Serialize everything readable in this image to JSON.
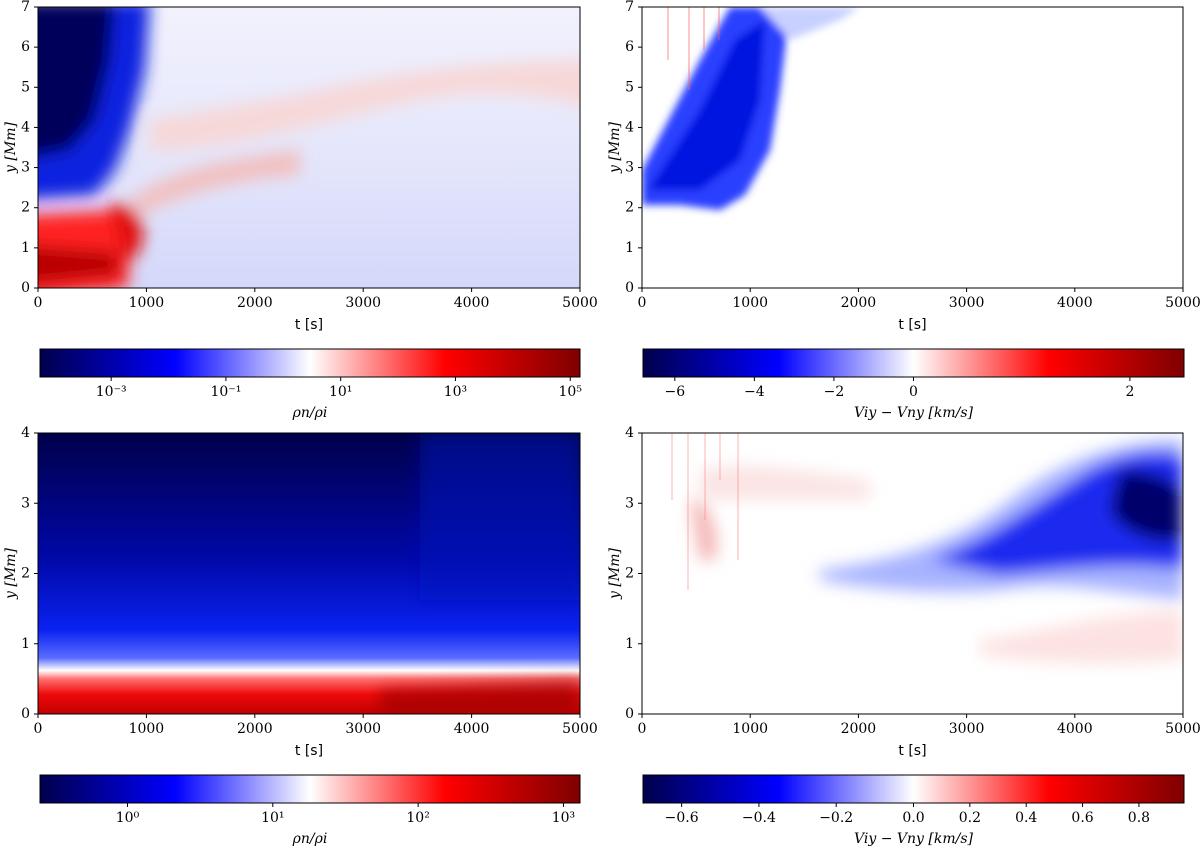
{
  "chart_data": [
    {
      "type": "heatmap",
      "xlabel": "t [s]",
      "ylabel": "y [Mm]",
      "xlim": [
        0,
        5000
      ],
      "ylim": [
        0,
        7
      ],
      "xticks": [
        0,
        1000,
        2000,
        3000,
        4000,
        5000
      ],
      "yticks": [
        0,
        1,
        2,
        3,
        4,
        5,
        6,
        7
      ],
      "colorbar": {
        "label": "ρn/ρi",
        "scale": "log",
        "lim": [
          5.75e-05,
          148000
        ],
        "ticks": [
          {
            "value": 0.001,
            "label": "10⁻³"
          },
          {
            "value": 0.1,
            "label": "10⁻¹"
          },
          {
            "value": 10,
            "label": "10¹"
          },
          {
            "value": 1000,
            "label": "10³"
          },
          {
            "value": 100000,
            "label": "10⁵"
          }
        ],
        "colors": [
          "#00004c",
          "#0000ff",
          "#ffffff",
          "#ff0000",
          "#7f0000"
        ]
      }
    },
    {
      "type": "heatmap",
      "xlabel": "t [s]",
      "ylabel": "y [Mm]",
      "xlim": [
        0,
        5000
      ],
      "ylim": [
        0,
        7
      ],
      "xticks": [
        0,
        1000,
        2000,
        3000,
        4000,
        5000
      ],
      "yticks": [
        0,
        1,
        2,
        3,
        4,
        5,
        6,
        7
      ],
      "colorbar": {
        "label": "Viy − Vny [km/s]",
        "scale": "diverging",
        "lim": [
          -6.8,
          2.5
        ],
        "vcenter": 0,
        "ticks": [
          {
            "value": -6,
            "label": "−6"
          },
          {
            "value": -4,
            "label": "−4"
          },
          {
            "value": -2,
            "label": "−2"
          },
          0,
          2
        ],
        "colors": [
          "#00004c",
          "#0000ff",
          "#ffffff",
          "#ff0000",
          "#7f0000"
        ]
      }
    },
    {
      "type": "heatmap",
      "xlabel": "t [s]",
      "ylabel": "y [Mm]",
      "xlim": [
        0,
        5000
      ],
      "ylim": [
        0,
        4
      ],
      "xticks": [
        0,
        1000,
        2000,
        3000,
        4000,
        5000
      ],
      "yticks": [
        0,
        1,
        2,
        3,
        4
      ],
      "colorbar": {
        "label": "ρn/ρi",
        "scale": "log",
        "lim": [
          0.25,
          1300
        ],
        "ticks": [
          {
            "value": 1,
            "label": "10⁰"
          },
          {
            "value": 10,
            "label": "10¹"
          },
          {
            "value": 100,
            "label": "10²"
          },
          {
            "value": 1000,
            "label": "10³"
          }
        ],
        "colors": [
          "#00004c",
          "#0000ff",
          "#ffffff",
          "#ff0000",
          "#7f0000"
        ]
      }
    },
    {
      "type": "heatmap",
      "xlabel": "t [s]",
      "ylabel": "y [Mm]",
      "xlim": [
        0,
        5000
      ],
      "ylim": [
        0,
        4
      ],
      "xticks": [
        0,
        1000,
        2000,
        3000,
        4000,
        5000
      ],
      "yticks": [
        0,
        1,
        2,
        3,
        4
      ],
      "colorbar": {
        "label": "Viy − Vny [km/s]",
        "scale": "diverging",
        "lim": [
          -0.7,
          0.96
        ],
        "vcenter": 0,
        "ticks": [
          {
            "value": -0.6,
            "label": "−0.6"
          },
          {
            "value": -0.4,
            "label": "−0.4"
          },
          {
            "value": -0.2,
            "label": "−0.2"
          },
          {
            "value": 0,
            "label": "0.0"
          },
          0.2,
          0.4,
          0.6,
          0.8
        ],
        "colors": [
          "#00004c",
          "#0000ff",
          "#ffffff",
          "#ff0000",
          "#7f0000"
        ]
      }
    }
  ]
}
